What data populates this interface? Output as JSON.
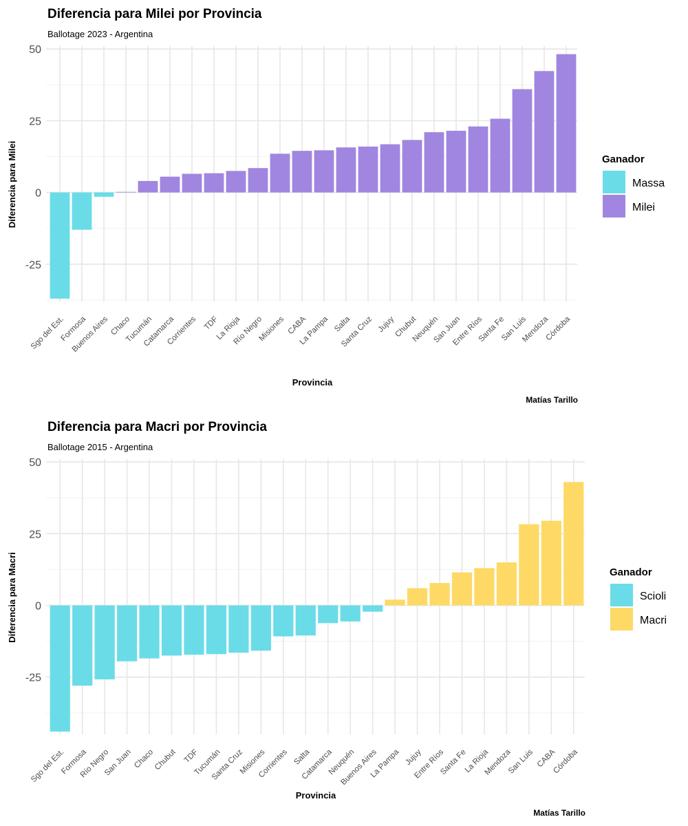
{
  "chart_data": [
    {
      "type": "bar",
      "title": "Diferencia para Milei por Provincia",
      "subtitle": "Ballotage 2023 - Argentina",
      "xlabel": "Provincia",
      "ylabel": "Diferencia para Milei",
      "caption": "Matías Tarillo",
      "ylim": [
        -38,
        51
      ],
      "yticks": [
        50,
        25,
        0,
        -25
      ],
      "ytick_labels": [
        "50",
        "25",
        "0",
        "-25"
      ],
      "legend": {
        "title": "Ganador",
        "entries": [
          {
            "label": "Massa",
            "color": "#6adce8"
          },
          {
            "label": "Milei",
            "color": "#a086e0"
          }
        ]
      },
      "categories": [
        "Sgo del Est.",
        "Formosa",
        "Buenos Aires",
        "Chaco",
        "Tucumán",
        "Catamarca",
        "Corrientes",
        "TDF",
        "La Rioja",
        "Río Negro",
        "Misiones",
        "CABA",
        "La Pampa",
        "Salta",
        "Santa Cruz",
        "Jujuy",
        "Chubut",
        "Neuquén",
        "San Juan",
        "Entre Ríos",
        "Santa Fe",
        "San Luis",
        "Mendoza",
        "Córdoba"
      ],
      "values": [
        -37,
        -13,
        -1.5,
        0.2,
        4,
        5.5,
        6.5,
        6.7,
        7.5,
        8.5,
        13.5,
        14.5,
        14.7,
        15.7,
        16,
        16.8,
        18.3,
        21,
        21.5,
        23,
        25.7,
        36,
        42.3,
        48.2
      ],
      "winners": [
        "Massa",
        "Massa",
        "Massa",
        "Milei",
        "Milei",
        "Milei",
        "Milei",
        "Milei",
        "Milei",
        "Milei",
        "Milei",
        "Milei",
        "Milei",
        "Milei",
        "Milei",
        "Milei",
        "Milei",
        "Milei",
        "Milei",
        "Milei",
        "Milei",
        "Milei",
        "Milei",
        "Milei"
      ]
    },
    {
      "type": "bar",
      "title": "Diferencia para Macri por Provincia",
      "subtitle": "Ballotage 2015 - Argentina",
      "xlabel": "Provincia",
      "ylabel": "Diferencia para Macri",
      "caption": "Matías Tarillo",
      "ylim": [
        -45,
        51
      ],
      "yticks": [
        50,
        25,
        0,
        -25
      ],
      "ytick_labels": [
        "50",
        "25",
        "0",
        "-25"
      ],
      "legend": {
        "title": "Ganador",
        "entries": [
          {
            "label": "Scioli",
            "color": "#6adce8"
          },
          {
            "label": "Macri",
            "color": "#fed966"
          }
        ]
      },
      "categories": [
        "Sgo del Est.",
        "Formosa",
        "Río Negro",
        "San Juan",
        "Chaco",
        "Chubut",
        "TDF",
        "Tucumán",
        "Santa Cruz",
        "Misiones",
        "Corrientes",
        "Salta",
        "Catamarca",
        "Neuquén",
        "Buenos Aires",
        "La Pampa",
        "Jujuy",
        "Entre Ríos",
        "Santa Fe",
        "La Rioja",
        "Mendoza",
        "San Luis",
        "CABA",
        "Córdoba"
      ],
      "values": [
        -44,
        -28,
        -25.8,
        -19.5,
        -18.5,
        -17.5,
        -17.2,
        -17,
        -16.5,
        -15.8,
        -10.8,
        -10.5,
        -6.2,
        -5.6,
        -2.2,
        2,
        6,
        7.8,
        11.5,
        13,
        15,
        28.3,
        29.5,
        43
      ],
      "winners": [
        "Scioli",
        "Scioli",
        "Scioli",
        "Scioli",
        "Scioli",
        "Scioli",
        "Scioli",
        "Scioli",
        "Scioli",
        "Scioli",
        "Scioli",
        "Scioli",
        "Scioli",
        "Scioli",
        "Scioli",
        "Macri",
        "Macri",
        "Macri",
        "Macri",
        "Macri",
        "Macri",
        "Macri",
        "Macri",
        "Macri"
      ]
    }
  ]
}
